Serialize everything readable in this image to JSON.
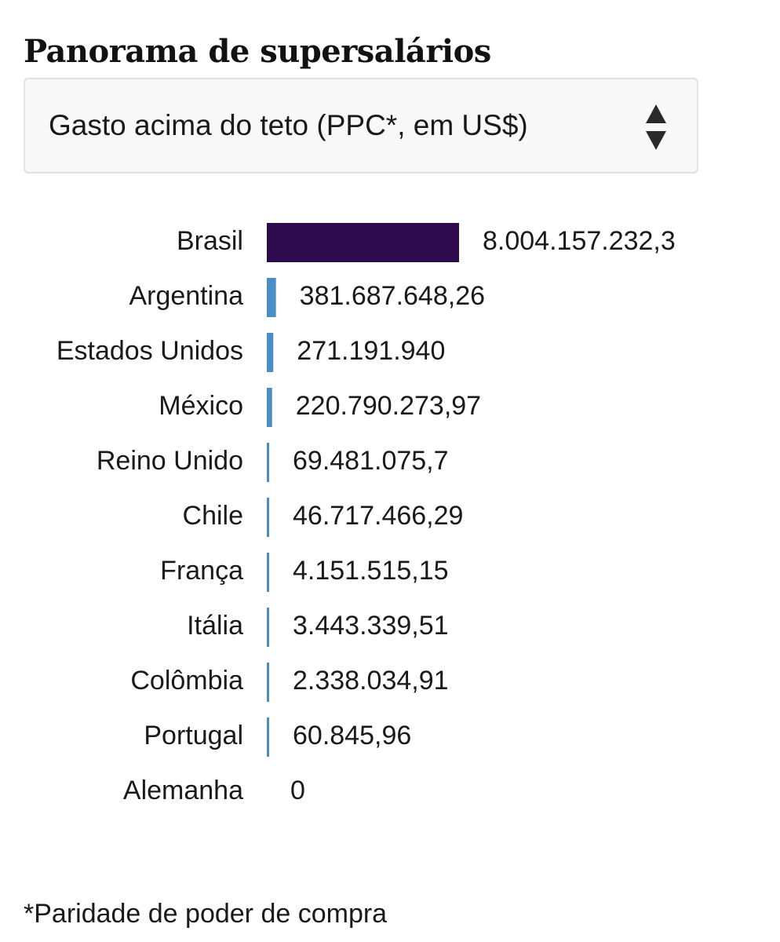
{
  "header": {
    "title": "Panorama de supersalários"
  },
  "selector": {
    "selected_label": "Gasto acima do teto (PPC*, em US$)",
    "icon": "sort-arrows-icon"
  },
  "chart_data": {
    "type": "bar",
    "orientation": "horizontal",
    "categories": [
      "Brasil",
      "Argentina",
      "Estados Unidos",
      "México",
      "Reino Unido",
      "Chile",
      "França",
      "Itália",
      "Colômbia",
      "Portugal",
      "Alemanha"
    ],
    "values": [
      8004157232.3,
      381687648.26,
      271191940,
      220790273.97,
      69481075.7,
      46717466.29,
      4151515.15,
      3443339.51,
      2338034.91,
      60845.96,
      0
    ],
    "value_labels": [
      "8.004.157.232,3",
      "381.687.648,26",
      "271.191.940",
      "220.790.273,97",
      "69.481.075,7",
      "46.717.466,29",
      "4.151.515,15",
      "3.443.339,51",
      "2.338.034,91",
      "60.845,96",
      "0"
    ],
    "highlight_category": "Brasil",
    "colors": {
      "highlight": "#2e0a4e",
      "default": "#4a8fc4"
    },
    "xlim": [
      0,
      8004157232.3
    ],
    "grid": false,
    "legend": "none",
    "title": "",
    "xlabel": "",
    "ylabel": ""
  },
  "footnote": {
    "text": "*Paridade de poder de compra"
  }
}
